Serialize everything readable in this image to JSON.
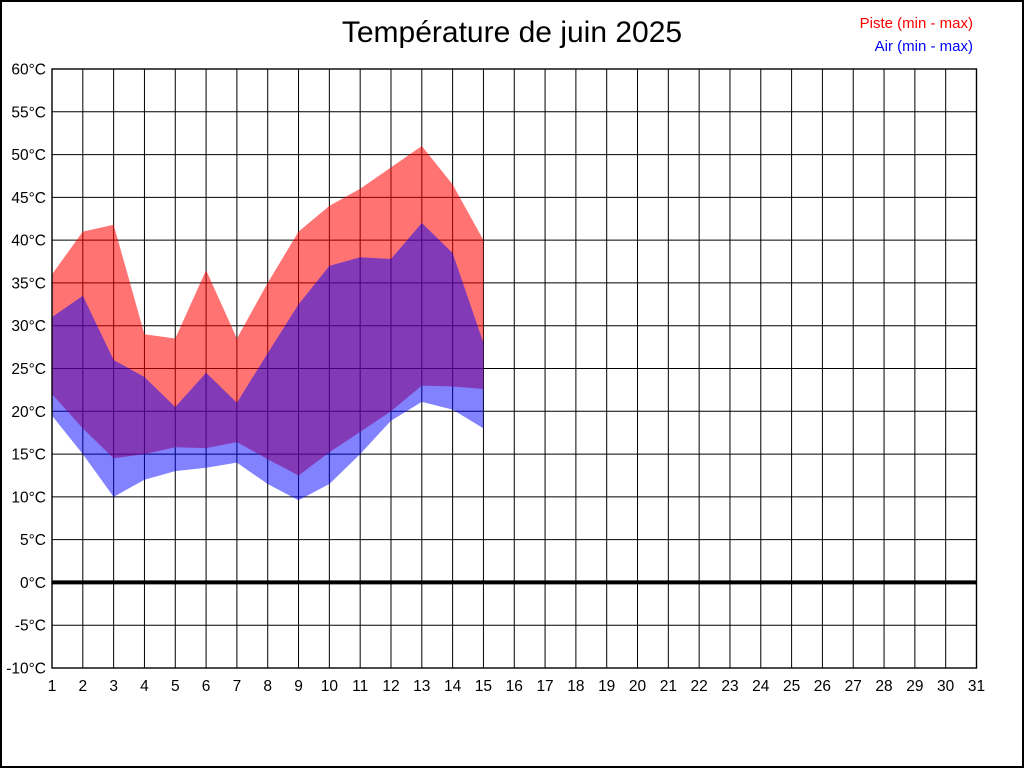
{
  "page": {
    "title": "Température de juin 2025"
  },
  "legend": {
    "items": [
      {
        "label": "Piste (min - max)",
        "color": "#ff0000"
      },
      {
        "label": "Air (min - max)",
        "color": "#0000ff"
      }
    ]
  },
  "chart_data": {
    "type": "area",
    "title": "Température de juin 2025",
    "xlabel": "",
    "ylabel": "",
    "xlim": [
      1,
      31
    ],
    "ylim": [
      -10,
      60
    ],
    "grid": true,
    "zero_line_bold": true,
    "legend_position": "top-right",
    "x_ticks": [
      1,
      2,
      3,
      4,
      5,
      6,
      7,
      8,
      9,
      10,
      11,
      12,
      13,
      14,
      15,
      16,
      17,
      18,
      19,
      20,
      21,
      22,
      23,
      24,
      25,
      26,
      27,
      28,
      29,
      30,
      31
    ],
    "y_ticks": [
      -10,
      -5,
      0,
      5,
      10,
      15,
      20,
      25,
      30,
      35,
      40,
      45,
      50,
      55,
      60
    ],
    "y_tick_labels": [
      "-10°C",
      "-5°C",
      "0°C",
      "5°C",
      "10°C",
      "15°C",
      "20°C",
      "25°C",
      "30°C",
      "35°C",
      "40°C",
      "45°C",
      "50°C",
      "55°C",
      "60°C"
    ],
    "x": [
      1,
      2,
      3,
      4,
      5,
      6,
      7,
      8,
      9,
      10,
      11,
      12,
      13,
      14,
      15
    ],
    "series": [
      {
        "name": "Piste (min - max)",
        "fill": "rgba(255,0,0,0.55)",
        "legend_color": "#ff0000",
        "min": [
          22,
          18,
          14.5,
          15,
          15.8,
          15.7,
          16.4,
          14.4,
          12.5,
          15.2,
          17.6,
          20,
          23,
          22.9,
          22.6
        ],
        "max": [
          36,
          41,
          41.8,
          29,
          28.5,
          36.5,
          28.5,
          35,
          41,
          44,
          46,
          48.5,
          51,
          46.5,
          40
        ]
      },
      {
        "name": "Air (min - max)",
        "fill": "rgba(0,0,255,0.49)",
        "legend_color": "#0000ff",
        "min": [
          19.5,
          15,
          10,
          12,
          13,
          13.4,
          14,
          11.5,
          9.6,
          11.5,
          15,
          18.9,
          21.1,
          20.2,
          18
        ],
        "max": [
          31,
          33.5,
          26,
          24,
          20.5,
          24.5,
          21,
          26.8,
          32.5,
          37,
          38,
          37.8,
          42,
          38.5,
          28
        ]
      }
    ]
  }
}
